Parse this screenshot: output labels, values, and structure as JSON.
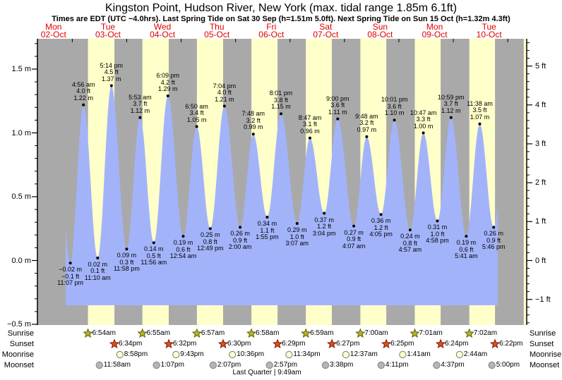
{
  "chart_data": {
    "type": "area",
    "title": "Kingston Point, Hudson River, New York (max. tidal range 1.85m 6.1ft)",
    "subtitle": "Times are EDT (UTC −4.0hrs). Last Spring Tide on Sat 30 Sep (h=1.51m 5.0ft). Next Spring Tide on Sun 15 Oct (h=1.32m 4.3ft)",
    "days": [
      {
        "name": "Mon",
        "date": "02-Oct"
      },
      {
        "name": "Tue",
        "date": "03-Oct"
      },
      {
        "name": "Wed",
        "date": "04-Oct"
      },
      {
        "name": "Thu",
        "date": "05-Oct"
      },
      {
        "name": "Fri",
        "date": "06-Oct"
      },
      {
        "name": "Sat",
        "date": "07-Oct"
      },
      {
        "name": "Sun",
        "date": "08-Oct"
      },
      {
        "name": "Mon",
        "date": "09-Oct"
      },
      {
        "name": "Tue",
        "date": "10-Oct"
      }
    ],
    "y_axis": {
      "left_ticks": [
        {
          "label": "1.5 m",
          "value": 1.5
        },
        {
          "label": "1.0 m",
          "value": 1.0
        },
        {
          "label": "0.5 m",
          "value": 0.5
        },
        {
          "label": "0.0 m",
          "value": 0.0
        },
        {
          "label": "−0.5 m",
          "value": -0.5
        }
      ],
      "right_ticks": [
        {
          "label": "5 ft",
          "value": 5
        },
        {
          "label": "4 ft",
          "value": 4
        },
        {
          "label": "3 ft",
          "value": 3
        },
        {
          "label": "2 ft",
          "value": 2
        },
        {
          "label": "1 ft",
          "value": 1
        },
        {
          "label": "0 ft",
          "value": 0
        },
        {
          "label": "−1 ft",
          "value": -1
        }
      ]
    },
    "tide_extrema": [
      {
        "day": 0,
        "time": "11:07 pm",
        "type": "low",
        "m": -0.02,
        "ft": -0.1
      },
      {
        "day": 1,
        "time": "4:56 am",
        "type": "high",
        "m": 1.22,
        "ft": 4.0
      },
      {
        "day": 1,
        "time": "11:10 am",
        "type": "low",
        "m": 0.02,
        "ft": 0.1
      },
      {
        "day": 1,
        "time": "5:14 pm",
        "type": "high",
        "m": 1.37,
        "ft": 4.5
      },
      {
        "day": 1,
        "time": "11:58 pm",
        "type": "low",
        "m": 0.09,
        "ft": 0.3
      },
      {
        "day": 2,
        "time": "5:53 am",
        "type": "high",
        "m": 1.12,
        "ft": 3.7
      },
      {
        "day": 2,
        "time": "11:56 am",
        "type": "low",
        "m": 0.14,
        "ft": 0.5
      },
      {
        "day": 2,
        "time": "6:09 pm",
        "type": "high",
        "m": 1.29,
        "ft": 4.2
      },
      {
        "day": 3,
        "time": "12:54 am",
        "type": "low",
        "m": 0.19,
        "ft": 0.6
      },
      {
        "day": 3,
        "time": "6:50 am",
        "type": "high",
        "m": 1.05,
        "ft": 3.4
      },
      {
        "day": 3,
        "time": "12:49 pm",
        "type": "low",
        "m": 0.25,
        "ft": 0.8
      },
      {
        "day": 3,
        "time": "7:04 pm",
        "type": "high",
        "m": 1.21,
        "ft": 4.0
      },
      {
        "day": 4,
        "time": "2:00 am",
        "type": "low",
        "m": 0.26,
        "ft": 0.9
      },
      {
        "day": 4,
        "time": "7:48 am",
        "type": "high",
        "m": 0.99,
        "ft": 3.2
      },
      {
        "day": 4,
        "time": "1:55 pm",
        "type": "low",
        "m": 0.34,
        "ft": 1.1
      },
      {
        "day": 4,
        "time": "8:01 pm",
        "type": "high",
        "m": 1.15,
        "ft": 3.8
      },
      {
        "day": 5,
        "time": "3:07 am",
        "type": "low",
        "m": 0.29,
        "ft": 1.0
      },
      {
        "day": 5,
        "time": "8:47 am",
        "type": "high",
        "m": 0.96,
        "ft": 3.1
      },
      {
        "day": 5,
        "time": "3:04 pm",
        "type": "low",
        "m": 0.37,
        "ft": 1.2
      },
      {
        "day": 5,
        "time": "9:00 pm",
        "type": "high",
        "m": 1.11,
        "ft": 3.6
      },
      {
        "day": 6,
        "time": "4:07 am",
        "type": "low",
        "m": 0.27,
        "ft": 0.9
      },
      {
        "day": 6,
        "time": "9:48 am",
        "type": "high",
        "m": 0.97,
        "ft": 3.2
      },
      {
        "day": 6,
        "time": "4:05 pm",
        "type": "low",
        "m": 0.36,
        "ft": 1.2
      },
      {
        "day": 6,
        "time": "10:01 pm",
        "type": "high",
        "m": 1.1,
        "ft": 3.6
      },
      {
        "day": 7,
        "time": "4:57 am",
        "type": "low",
        "m": 0.24,
        "ft": 0.8
      },
      {
        "day": 7,
        "time": "10:47 am",
        "type": "high",
        "m": 1.0,
        "ft": 3.3
      },
      {
        "day": 7,
        "time": "4:58 pm",
        "type": "low",
        "m": 0.31,
        "ft": 1.0
      },
      {
        "day": 7,
        "time": "10:59 pm",
        "type": "high",
        "m": 1.12,
        "ft": 3.7
      },
      {
        "day": 8,
        "time": "5:41 am",
        "type": "low",
        "m": 0.19,
        "ft": 0.6
      },
      {
        "day": 8,
        "time": "11:38 am",
        "type": "high",
        "m": 1.07,
        "ft": 3.5
      },
      {
        "day": 8,
        "time": "5:46 pm",
        "type": "low",
        "m": 0.26,
        "ft": 0.9
      }
    ],
    "astro": {
      "rows": [
        "Sunrise",
        "Sunset",
        "Moonrise",
        "Moonset"
      ],
      "sunrise": [
        {
          "day": 1,
          "time": "6:54am"
        },
        {
          "day": 2,
          "time": "6:55am"
        },
        {
          "day": 3,
          "time": "6:57am"
        },
        {
          "day": 4,
          "time": "6:58am"
        },
        {
          "day": 5,
          "time": "6:59am"
        },
        {
          "day": 6,
          "time": "7:00am"
        },
        {
          "day": 7,
          "time": "7:01am"
        },
        {
          "day": 8,
          "time": "7:02am"
        }
      ],
      "sunset": [
        {
          "day": 1,
          "time": "6:34pm"
        },
        {
          "day": 2,
          "time": "6:32pm"
        },
        {
          "day": 3,
          "time": "6:30pm"
        },
        {
          "day": 4,
          "time": "6:29pm"
        },
        {
          "day": 5,
          "time": "6:27pm"
        },
        {
          "day": 6,
          "time": "6:25pm"
        },
        {
          "day": 7,
          "time": "6:24pm"
        },
        {
          "day": 8,
          "time": "6:22pm"
        }
      ],
      "moonrise": [
        {
          "day": 1,
          "time": "8:58pm"
        },
        {
          "day": 2,
          "time": "9:43pm"
        },
        {
          "day": 3,
          "time": "10:36pm"
        },
        {
          "day": 4,
          "time": "11:34pm"
        },
        {
          "day": 6,
          "time": "12:37am"
        },
        {
          "day": 7,
          "time": "1:41am"
        },
        {
          "day": 8,
          "time": "2:44am"
        }
      ],
      "moonset": [
        {
          "day": 1,
          "time": "11:58am"
        },
        {
          "day": 2,
          "time": "1:07pm"
        },
        {
          "day": 3,
          "time": "2:07pm"
        },
        {
          "day": 4,
          "time": "2:57pm"
        },
        {
          "day": 5,
          "time": "3:38pm"
        },
        {
          "day": 6,
          "time": "4:11pm"
        },
        {
          "day": 7,
          "time": "4:37pm"
        },
        {
          "day": 8,
          "time": "5:00pm"
        }
      ],
      "phase_note": "Last Quarter | 9:49am"
    },
    "colors": {
      "day_band": "#ffffca",
      "night_band": "#a9a9a9",
      "tide_fill": "#a3b3fa",
      "date_text": "#e00000",
      "sunrise_star": "#b5b52e",
      "sunrise_star_edge": "#5e5e00",
      "sunset_star": "#dd4f1d",
      "sunset_star_edge": "#801800",
      "moonrise_circle": "#ffffd2",
      "moonset_circle": "#b6b6b6",
      "moon_edge": "#8a8a8a"
    }
  }
}
